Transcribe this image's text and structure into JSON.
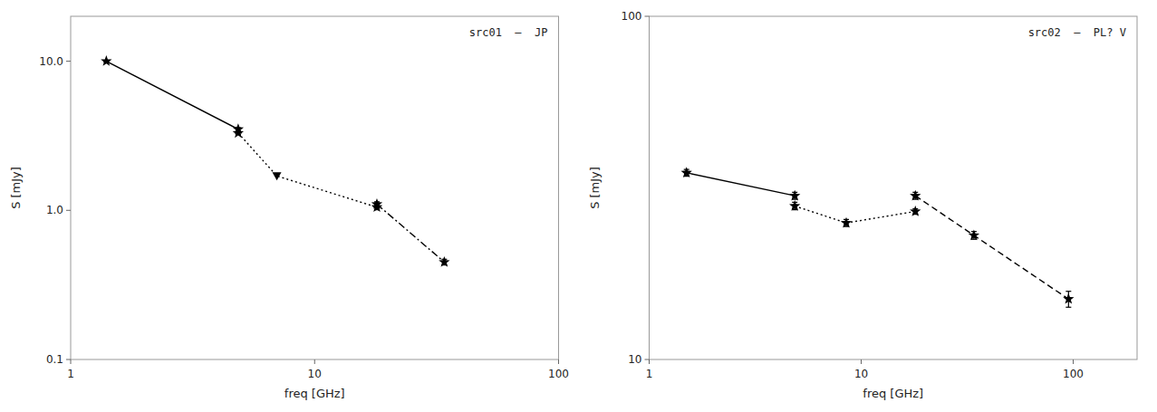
{
  "chart_data": [
    {
      "type": "line",
      "title": "src01  –  JP",
      "x_label": "freq [GHz]",
      "y_label": "S [mJy]",
      "log": true,
      "color": "black",
      "xlim": [
        1,
        100
      ],
      "ylim": [
        0.1,
        20
      ],
      "xticks": [
        1,
        10,
        100
      ],
      "yticks": [
        0.1,
        {
          "value": 1.0,
          "label": "1.0"
        },
        {
          "value": 10.0,
          "label": "10.0"
        }
      ],
      "series": [
        {
          "type": "line",
          "line_style": "solid",
          "x": [
            1.4,
            4.86
          ],
          "values": [
            10.0,
            3.5
          ]
        },
        {
          "type": "line",
          "line_style": "dotted",
          "x": [
            4.86,
            7.0,
            18.0
          ],
          "values": [
            3.3,
            1.7,
            1.05
          ]
        },
        {
          "type": "line",
          "line_style": "dashdot",
          "x": [
            18.0,
            34.0
          ],
          "values": [
            1.1,
            0.45
          ]
        },
        {
          "type": "scatter",
          "marker": "star",
          "x": [
            1.4,
            4.86
          ],
          "values": [
            10.0,
            3.5
          ],
          "errors": [
            0.12,
            0.08
          ]
        },
        {
          "type": "scatter",
          "marker": "star",
          "x": [
            4.86,
            18.0
          ],
          "values": [
            3.3,
            1.05
          ],
          "errors": [
            0.08,
            0.04
          ]
        },
        {
          "type": "scatter",
          "marker": "triangle_down",
          "x": [
            7.0
          ],
          "values": [
            1.7
          ]
        },
        {
          "type": "scatter",
          "marker": "star",
          "x": [
            18.0,
            34.0
          ],
          "values": [
            1.1,
            0.45
          ],
          "errors": [
            0.04,
            0.02
          ]
        }
      ]
    },
    {
      "type": "line",
      "title": "src02  –  PL? V",
      "x_label": "freq [GHz]",
      "y_label": "S [mJy]",
      "log": true,
      "color": "black",
      "xlim": [
        1,
        200
      ],
      "ylim": [
        10,
        100
      ],
      "xticks": [
        1,
        10,
        100
      ],
      "yticks": [
        10,
        100
      ],
      "series": [
        {
          "type": "line",
          "line_style": "solid",
          "x": [
            1.5,
            4.86
          ],
          "values": [
            35.0,
            30.0
          ]
        },
        {
          "type": "line",
          "line_style": "dotted",
          "x": [
            4.86,
            8.5,
            18.0
          ],
          "values": [
            28.0,
            25.0,
            27.0
          ]
        },
        {
          "type": "line",
          "line_style": "dashed",
          "x": [
            18.0,
            34.0,
            95.0
          ],
          "values": [
            30.0,
            23.0,
            15.0
          ]
        },
        {
          "type": "scatter",
          "marker": "star",
          "x": [
            1.5,
            4.86
          ],
          "values": [
            35.0,
            30.0
          ],
          "errors": [
            0.8,
            0.7
          ]
        },
        {
          "type": "scatter",
          "marker": "star",
          "x": [
            4.86,
            8.5,
            18.0
          ],
          "values": [
            28.0,
            25.0,
            27.0
          ],
          "errors": [
            0.7,
            0.6,
            0.5
          ]
        },
        {
          "type": "scatter",
          "marker": "star",
          "x": [
            18.0,
            34.0,
            95.0
          ],
          "values": [
            30.0,
            23.0,
            15.0
          ],
          "errors": [
            0.7,
            0.6,
            0.8
          ]
        }
      ]
    }
  ]
}
